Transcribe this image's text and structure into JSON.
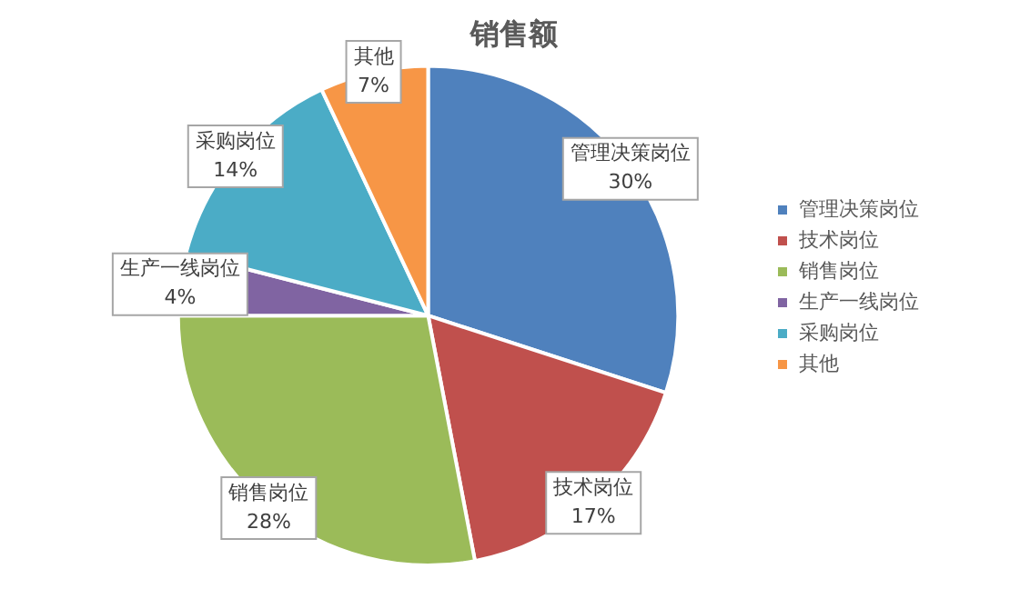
{
  "chart_data": {
    "type": "pie",
    "title": "销售额",
    "categories": [
      "管理决策岗位",
      "技术岗位",
      "销售岗位",
      "生产一线岗位",
      "采购岗位",
      "其他"
    ],
    "values": [
      30,
      17,
      28,
      4,
      14,
      7
    ],
    "colors": [
      "#4f81bd",
      "#c0504d",
      "#9bbb59",
      "#8064a2",
      "#4bacc6",
      "#f79646"
    ],
    "value_labels": [
      "30%",
      "17%",
      "28%",
      "4%",
      "14%",
      "7%"
    ],
    "legend": "right"
  }
}
